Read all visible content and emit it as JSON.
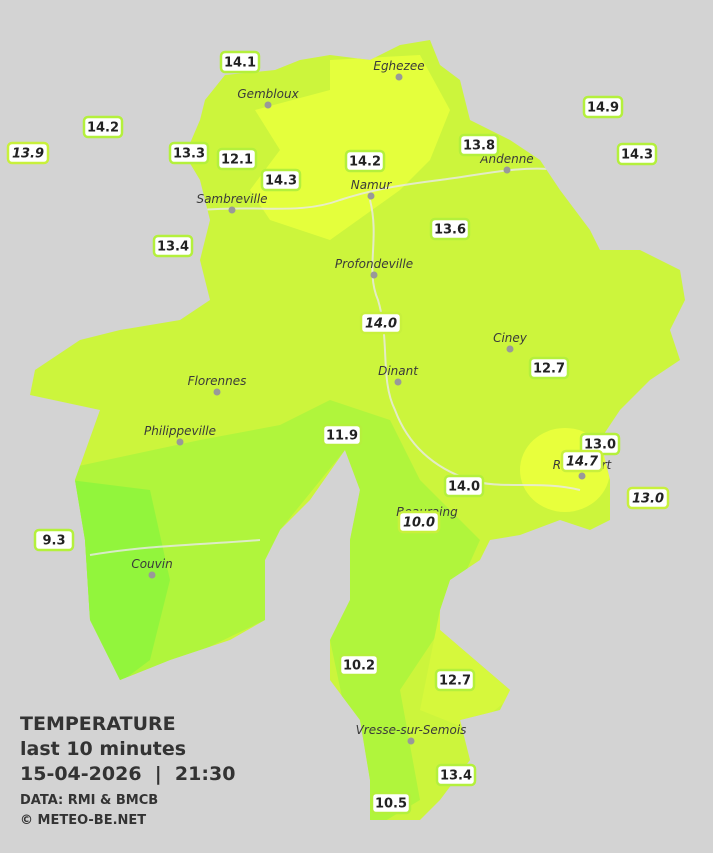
{
  "title": {
    "heading": "TEMPERATURE",
    "subheading": "last 10 minutes",
    "datetime": "15-04-2026  |  21:30",
    "source": "DATA: RMI & BMCB",
    "copyright": "© METEO-BE.NET"
  },
  "cities": [
    "Eghezee",
    "Gembloux",
    "Andenne",
    "Namur",
    "Sambreville",
    "Profondeville",
    "Ciney",
    "Dinant",
    "Florennes",
    "Philippeville",
    "Rochefort",
    "Beauraing",
    "Couvin",
    "Vresse-sur-Semois"
  ],
  "stations": [
    "14.1",
    "14.2",
    "13.9",
    "13.3",
    "12.1",
    "14.3",
    "14.2",
    "13.8",
    "14.9",
    "14.3",
    "13.4",
    "13.6",
    "14.0",
    "12.7",
    "11.9",
    "13.0",
    "14.7",
    "14.0",
    "13.0",
    "10.0",
    "9.3",
    "10.2",
    "12.7",
    "13.4",
    "10.5"
  ]
}
